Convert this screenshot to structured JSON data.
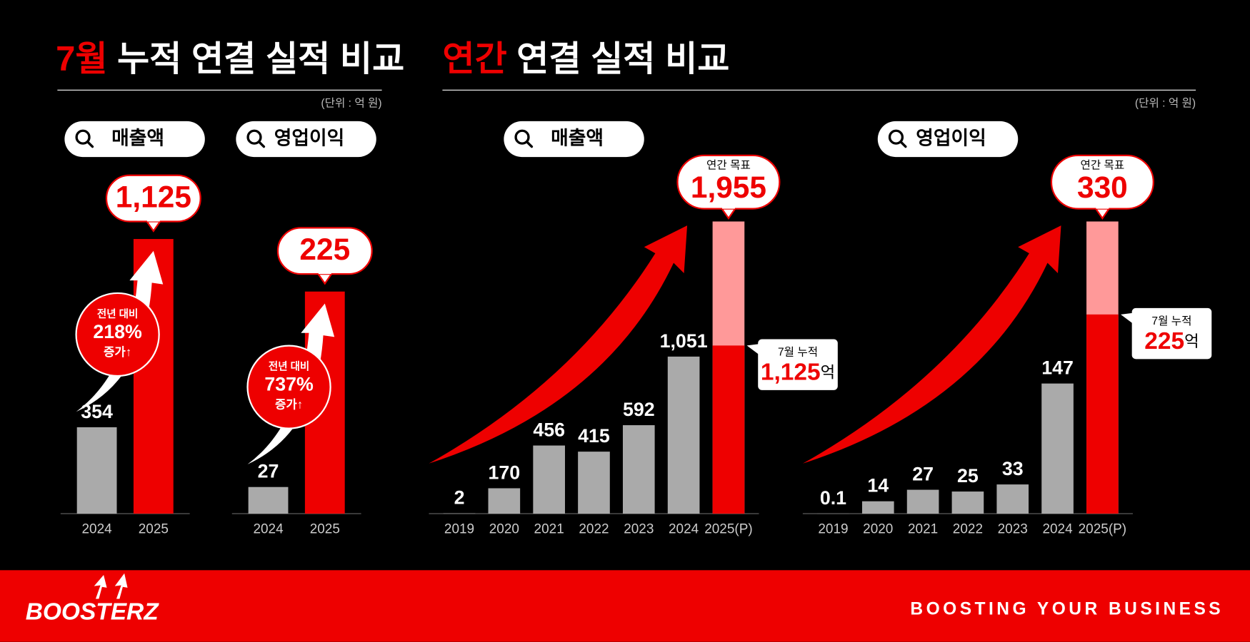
{
  "sections": [
    {
      "highlight": "7월",
      "title": "누적 연결 실적 비교",
      "unit": "(단위 : 억 원)"
    },
    {
      "highlight": "연간",
      "title": "연결 실적 비교",
      "unit": "(단위 : 억 원)"
    }
  ],
  "chart_data": [
    {
      "type": "bar",
      "title": "매출액",
      "categories": [
        "2024",
        "2025"
      ],
      "values": [
        354,
        1125
      ],
      "value_labels": [
        "354",
        "1,125"
      ],
      "colors": [
        "#aaaaaa",
        "#ee0000"
      ],
      "annotation": {
        "lines": [
          "전년 대비",
          "218%",
          "증가↑"
        ]
      }
    },
    {
      "type": "bar",
      "title": "영업이익",
      "categories": [
        "2024",
        "2025"
      ],
      "values": [
        27,
        225
      ],
      "value_labels": [
        "27",
        "225"
      ],
      "colors": [
        "#aaaaaa",
        "#ee0000"
      ],
      "annotation": {
        "lines": [
          "전년 대비",
          "737%",
          "증가↑"
        ]
      }
    },
    {
      "type": "target_bar",
      "title": "매출액",
      "categories": [
        "2019",
        "2020",
        "2021",
        "2022",
        "2023",
        "2024",
        "2025(P)"
      ],
      "values": [
        2,
        170,
        456,
        415,
        592,
        1051,
        null
      ],
      "value_labels": [
        "2",
        "170",
        "456",
        "415",
        "592",
        "1,051",
        null
      ],
      "color": "#aaaaaa",
      "target": {
        "label": "연간 목표",
        "value": 1955,
        "value_label": "1,955",
        "color": "#ff9999"
      },
      "ytd": {
        "label": "7월 누적",
        "value": 1125,
        "value_label": "1,125",
        "unit": "억",
        "color": "#ee0000"
      }
    },
    {
      "type": "target_bar",
      "title": "영업이익",
      "categories": [
        "2019",
        "2020",
        "2021",
        "2022",
        "2023",
        "2024",
        "2025(P)"
      ],
      "values": [
        0.1,
        14,
        27,
        25,
        33,
        147,
        null
      ],
      "value_labels": [
        "0.1",
        "14",
        "27",
        "25",
        "33",
        "147",
        null
      ],
      "color": "#aaaaaa",
      "target": {
        "label": "연간 목표",
        "value": 330,
        "value_label": "330",
        "color": "#ff9999"
      },
      "ytd": {
        "label": "7월 누적",
        "value": 225,
        "value_label": "225",
        "unit": "억",
        "color": "#ee0000"
      }
    }
  ],
  "footer": {
    "logo": "BOOSTERZ",
    "slogan": "BOOSTING YOUR BUSINESS"
  }
}
